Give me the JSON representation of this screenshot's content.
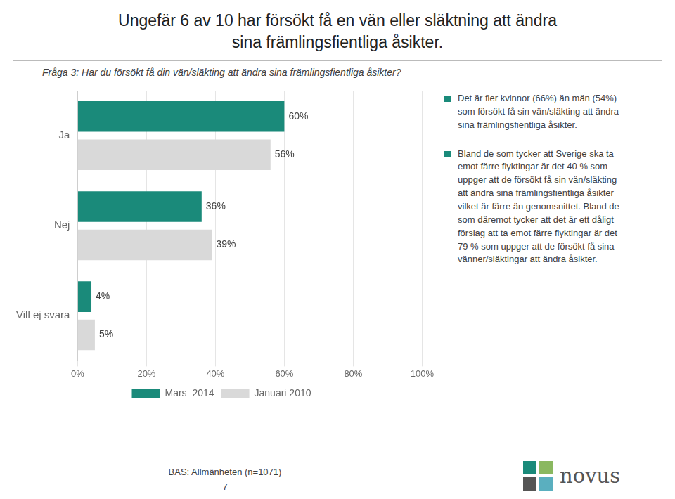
{
  "chart_data": {
    "type": "bar",
    "orientation": "horizontal",
    "title": "Ungefär 6 av 10 har försökt få en vän eller släktning att ändra\nsina främlingsfientliga åsikter.",
    "subtitle": "Fråga 3: Har du försökt få din vän/släkting att ändra sina främlingsfientliga åsikter?",
    "categories": [
      "Vill ej svara",
      "Nej",
      "Ja"
    ],
    "series": [
      {
        "name": "Mars  2014",
        "color": "#1a8a7a",
        "values": [
          4,
          36,
          60
        ],
        "value_labels": [
          "4%",
          "36%",
          "60%"
        ]
      },
      {
        "name": "Januari 2010",
        "color": "#d9d9d9",
        "values": [
          5,
          39,
          56
        ],
        "value_labels": [
          "5%",
          "39%",
          "56%"
        ]
      }
    ],
    "xlim": [
      0,
      100
    ],
    "xticks": [
      {
        "value": 0,
        "label": "0%"
      },
      {
        "value": 20,
        "label": "20%"
      },
      {
        "value": 40,
        "label": "40%"
      },
      {
        "value": 60,
        "label": "60%"
      },
      {
        "value": 80,
        "label": "80%"
      },
      {
        "value": 100,
        "label": "100%"
      }
    ],
    "grid": true,
    "legend": "bottom",
    "data_labels": true,
    "annotations": [
      "Det är fler kvinnor (66%) än män (54%)\nsom försökt få sin vän/släkting att ändra\nsina främlingsfientliga åsikter.",
      "Bland de som tycker att Sverige ska ta\nemot färre flyktingar är det 40 % som\nuppger att de försökt få sin vän/släkting\natt ändra sina främlingsfientliga åsikter\nvilket är färre än genomsnittet. Bland de\nsom däremot tycker att det är ett dåligt\nförslag att ta emot färre flyktingar är det\n79 % som uppger att de försökt få sina\nvänner/släktingar att ändra åsikter."
    ],
    "footer": [
      "BAS: Allmänheten (n=1071)",
      "7"
    ],
    "logo": "novus"
  }
}
